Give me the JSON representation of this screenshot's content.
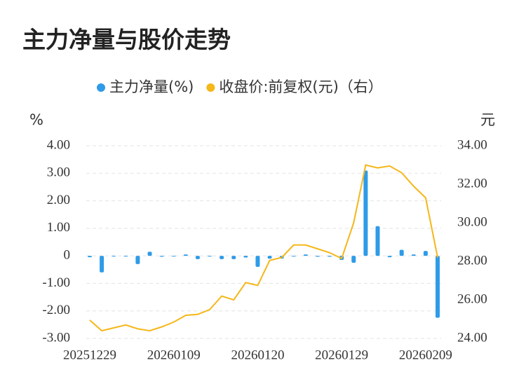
{
  "chart_data": {
    "type": "combo",
    "title": "主力净量与股价走势",
    "y_label": "%",
    "y2_label": "元",
    "categories": [
      "20251229",
      null,
      null,
      null,
      null,
      null,
      null,
      "20260109",
      null,
      null,
      null,
      null,
      null,
      null,
      "20260120",
      null,
      null,
      null,
      null,
      null,
      null,
      "20260129",
      null,
      null,
      null,
      null,
      null,
      null,
      "20260209",
      null
    ],
    "series": [
      {
        "name": "主力净量(%)",
        "type": "bar",
        "color": "#2f9be8",
        "axis": "y",
        "values": [
          -0.05,
          -0.6,
          0,
          0,
          -0.3,
          0.15,
          -0.03,
          0,
          0.05,
          -0.12,
          0,
          -0.12,
          -0.12,
          -0.06,
          -0.4,
          -0.1,
          -0.1,
          0,
          0.05,
          -0.03,
          -0.03,
          -0.15,
          -0.25,
          3.1,
          1.08,
          -0.05,
          0.22,
          0.05,
          0.18,
          -2.25
        ]
      },
      {
        "name": "收盘价:前复权(元)（右）",
        "type": "line",
        "color": "#f5b719",
        "axis": "y2",
        "values": [
          24.95,
          24.4,
          24.55,
          24.7,
          24.5,
          24.4,
          24.6,
          24.85,
          25.2,
          25.25,
          25.5,
          26.2,
          26.0,
          26.9,
          26.75,
          28.05,
          28.2,
          28.85,
          28.85,
          28.65,
          28.45,
          28.15,
          30.0,
          33.0,
          32.85,
          32.95,
          32.6,
          31.9,
          31.3,
          28.2
        ]
      }
    ],
    "ylim": [
      -3,
      4
    ],
    "yticks": [
      {
        "value": -3,
        "label": "-3.00"
      },
      {
        "value": -2,
        "label": "-2.00"
      },
      {
        "value": -1,
        "label": "-1.00"
      },
      0,
      {
        "value": 1,
        "label": "1.00"
      },
      {
        "value": 2,
        "label": "2.00"
      },
      {
        "value": 3,
        "label": "3.00"
      },
      {
        "value": 4,
        "label": "4.00"
      }
    ],
    "y2lim": [
      24,
      34
    ],
    "y2ticks": [
      {
        "value": 24,
        "label": "24.00"
      },
      {
        "value": 26,
        "label": "26.00"
      },
      {
        "value": 28,
        "label": "28.00"
      },
      {
        "value": 30,
        "label": "30.00"
      },
      {
        "value": 32,
        "label": "32.00"
      },
      {
        "value": 34,
        "label": "34.00"
      }
    ],
    "grid": true,
    "legend": "top"
  }
}
